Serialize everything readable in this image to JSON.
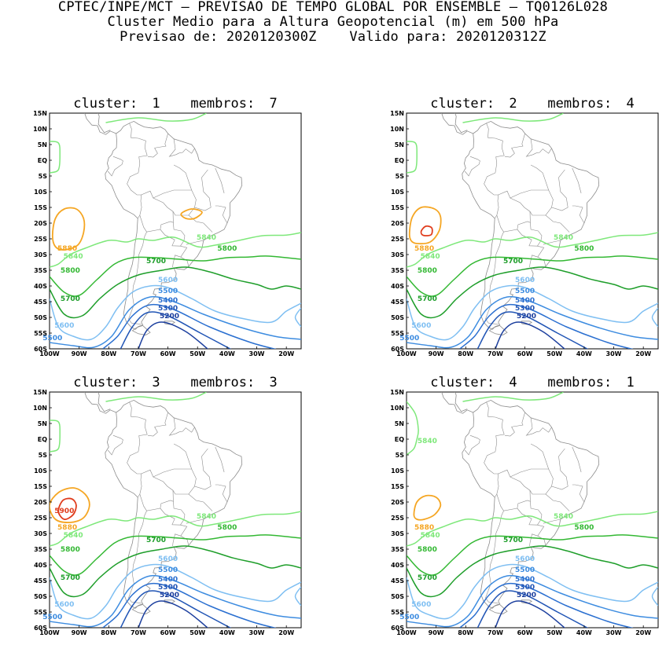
{
  "header": {
    "line1": "CPTEC/INPE/MCT – PREVISAO DE TEMPO GLOBAL POR ENSEMBLE – TQ0126L028",
    "line2": "Cluster Medio para a Altura Geopotencial (m) em 500 hPa",
    "line3_prefix": "Previsao de:",
    "line3_init": "2020120300Z",
    "line3_valid_prefix": "Valido para:",
    "line3_valid": "2020120312Z"
  },
  "axes": {
    "lat_labels": [
      "15N",
      "10N",
      "5N",
      "EQ",
      "5S",
      "10S",
      "15S",
      "20S",
      "25S",
      "30S",
      "35S",
      "40S",
      "45S",
      "50S",
      "55S",
      "60S"
    ],
    "lon_labels": [
      "100W",
      "90W",
      "80W",
      "70W",
      "60W",
      "50W",
      "40W",
      "30W",
      "20W"
    ]
  },
  "colors": {
    "c5200": "#1c3f9e",
    "c5300": "#2155b5",
    "c5400": "#2a6fd0",
    "c5500": "#3d8ce0",
    "c5600": "#7fbff2",
    "c5700": "#1e9e2a",
    "c5800": "#33b833",
    "c5840": "#7ee87a",
    "c5880": "#f5a623",
    "c5900": "#e03c1c",
    "coast": "#8c8c8c"
  },
  "panels": [
    {
      "title_prefix": "cluster:",
      "cluster": "1",
      "members_prefix": "membros:",
      "members": "7",
      "labels": {
        "l5880": "5880",
        "l5840a": "5840",
        "l5840b": "5840",
        "l5800a": "5800",
        "l5800b": "5800",
        "l5700a": "5700",
        "l5700b": "5700",
        "l5600a": "5600",
        "l5600b": "5600",
        "l5500a": "5500",
        "l5500b": "5500",
        "l5400": "5400",
        "l5300": "5300",
        "l5200": "5200"
      }
    },
    {
      "title_prefix": "cluster:",
      "cluster": "2",
      "members_prefix": "membros:",
      "members": "4",
      "labels": {
        "l5880": "5880",
        "l5840a": "5840",
        "l5840b": "5840",
        "l5800a": "5800",
        "l5800b": "5800",
        "l5700a": "5700",
        "l5700b": "5700",
        "l5600a": "5600",
        "l5600b": "5600",
        "l5500a": "5500",
        "l5500b": "5500",
        "l5400": "5400",
        "l5300": "5300",
        "l5200": "5200"
      }
    },
    {
      "title_prefix": "cluster:",
      "cluster": "3",
      "members_prefix": "membros:",
      "members": "3",
      "labels": {
        "l5900": "5900",
        "l5880": "5880",
        "l5840a": "5840",
        "l5840b": "5840",
        "l5800a": "5800",
        "l5800b": "5800",
        "l5700a": "5700",
        "l5700b": "5700",
        "l5600a": "5600",
        "l5600b": "5600",
        "l5500a": "5500",
        "l5500b": "5500",
        "l5400": "5400",
        "l5300": "5300",
        "l5200": "5200"
      }
    },
    {
      "title_prefix": "cluster:",
      "cluster": "4",
      "members_prefix": "membros:",
      "members": "1",
      "labels": {
        "l5880": "5880",
        "l5840a": "5840",
        "l5840b": "5840",
        "l5840c": "5840",
        "l5800a": "5800",
        "l5800b": "5800",
        "l5700a": "5700",
        "l5700b": "5700",
        "l5600a": "5600",
        "l5600b": "5600",
        "l5500a": "5500",
        "l5500b": "5500",
        "l5400": "5400",
        "l5300": "5300",
        "l5200": "5200"
      }
    }
  ]
}
